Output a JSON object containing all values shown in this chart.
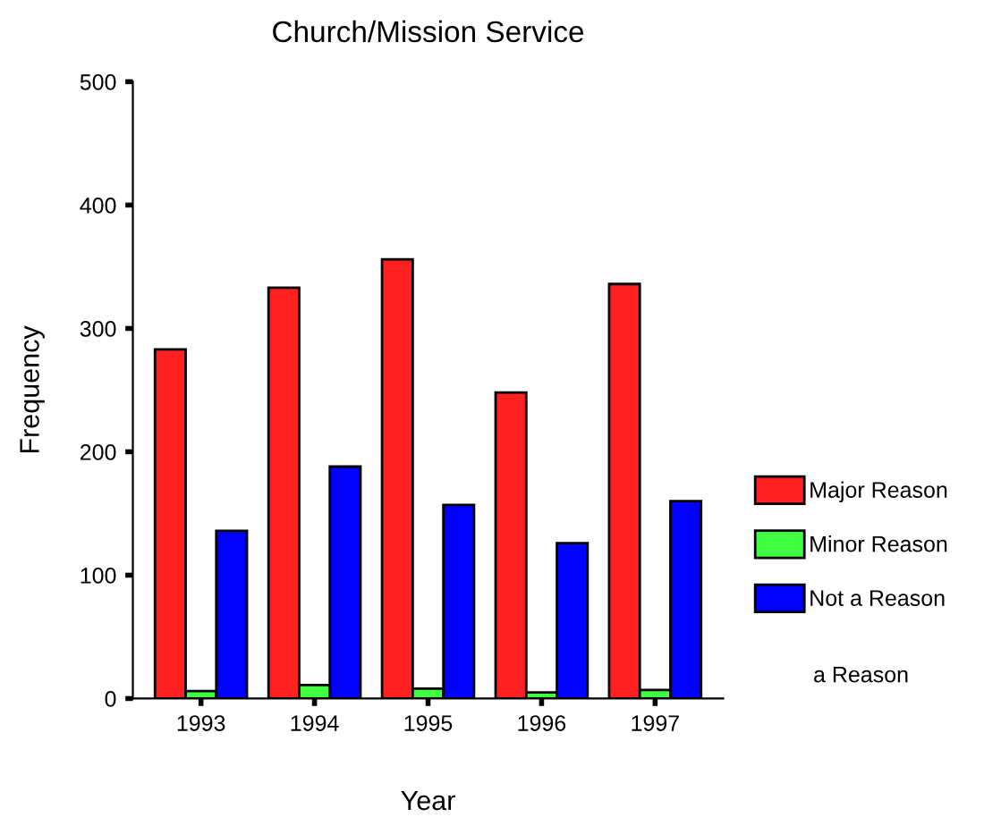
{
  "chart_data": {
    "type": "bar",
    "title": "Church/Mission Service",
    "xlabel": "Year",
    "ylabel": "Frequency",
    "categories": [
      "1993",
      "1994",
      "1995",
      "1996",
      "1997"
    ],
    "series": [
      {
        "name": "Major Reason",
        "color": "#ff2020",
        "values": [
          283,
          333,
          356,
          248,
          336
        ]
      },
      {
        "name": "Minor Reason",
        "color": "#40ff40",
        "values": [
          6,
          11,
          8,
          5,
          7
        ]
      },
      {
        "name": "Not a Reason",
        "color": "#0000ff",
        "values": [
          136,
          188,
          157,
          126,
          160
        ]
      }
    ],
    "ylim": [
      0,
      500
    ],
    "yticks": [
      0,
      100,
      200,
      300,
      400,
      500
    ],
    "grid": false,
    "legend": "right",
    "annotations": [
      "a Reason"
    ]
  }
}
